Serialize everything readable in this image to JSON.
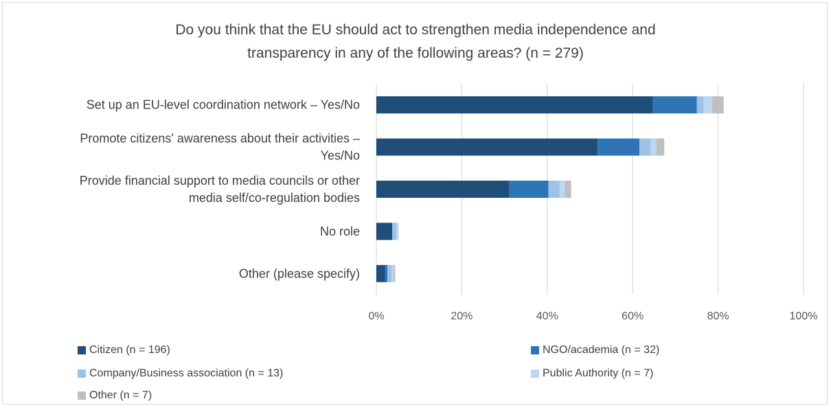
{
  "chart_data": {
    "type": "bar",
    "orientation": "horizontal",
    "stacked": true,
    "title_lines": [
      "Do you think that the EU should act to strengthen media independence and",
      "transparency in any of the following areas? (n = 279)"
    ],
    "categories": [
      "Set up an EU-level coordination network – Yes/No",
      "Promote citizens' awareness about their activities – Yes/No",
      "Provide financial support to media councils or other media self/co-regulation bodies",
      "No role",
      "Other (please specify)"
    ],
    "category_label_lines": [
      [
        "Set up an EU-level coordination network – Yes/No"
      ],
      [
        "Promote citizens' awareness about their activities –",
        "Yes/No"
      ],
      [
        "Provide financial support to media councils or other",
        "media self/co-regulation bodies"
      ],
      [
        "No role"
      ],
      [
        "Other (please specify)"
      ]
    ],
    "series": [
      {
        "name": "Citizen (n = 196)",
        "color": "#1f4e79",
        "values": [
          64.7,
          51.8,
          31.1,
          3.7,
          2.0
        ]
      },
      {
        "name": "NGO/academia (n = 32)",
        "color": "#2e75b6",
        "values": [
          10.3,
          9.8,
          9.2,
          0.0,
          0.6
        ]
      },
      {
        "name": "Company/Business association (n = 13)",
        "color": "#9dc3e6",
        "values": [
          1.6,
          2.6,
          2.6,
          1.0,
          1.0
        ]
      },
      {
        "name": "Public Authority (n = 7)",
        "color": "#bdd7ee",
        "values": [
          2.0,
          1.4,
          1.2,
          0.5,
          0.4
        ]
      },
      {
        "name": "Other (n = 7)",
        "color": "#bfbfbf",
        "values": [
          2.7,
          1.8,
          1.5,
          0.0,
          0.4
        ]
      }
    ],
    "xlim": [
      0,
      100
    ],
    "x_ticks": [
      "0%",
      "20%",
      "40%",
      "60%",
      "80%",
      "100%"
    ],
    "xlabel": "",
    "ylabel": "",
    "grid": "vertical",
    "legend_position": "bottom"
  }
}
